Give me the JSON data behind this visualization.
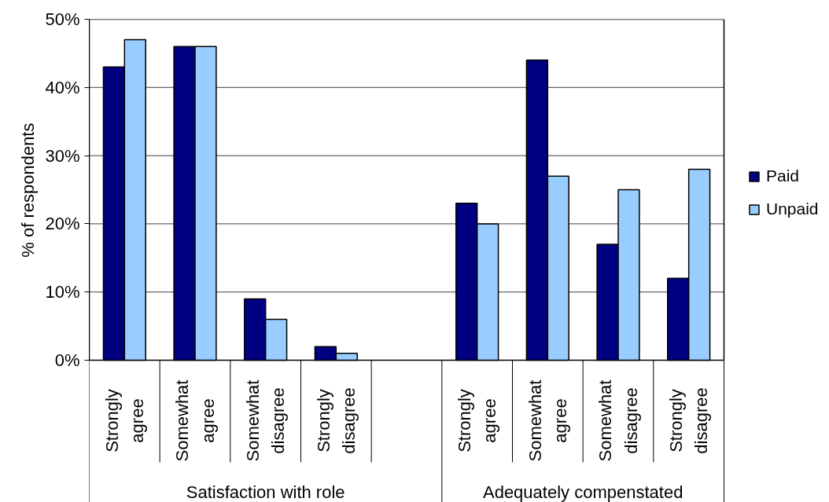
{
  "chart_data": {
    "type": "bar",
    "categories": [
      "Strongly agree",
      "Somewhat agree",
      "Somewhat disagree",
      "Strongly disagree",
      null,
      "Strongly agree",
      "Somewhat agree",
      "Somewhat disagree",
      "Strongly disagree"
    ],
    "series": [
      {
        "name": "Paid",
        "color": "#000080",
        "values": [
          43,
          46,
          9,
          2,
          null,
          23,
          44,
          17,
          12
        ]
      },
      {
        "name": "Unpaid",
        "color": "#99ccff",
        "values": [
          47,
          46,
          6,
          1,
          null,
          20,
          27,
          25,
          28
        ]
      }
    ],
    "ylabel": "% of respondents",
    "ylim": [
      0,
      50
    ],
    "yticks": [
      {
        "value": 0,
        "label": "0%"
      },
      {
        "value": 10,
        "label": "10%"
      },
      {
        "value": 20,
        "label": "20%"
      },
      {
        "value": 30,
        "label": "30%"
      },
      {
        "value": 40,
        "label": "40%"
      },
      {
        "value": 50,
        "label": "50%"
      }
    ],
    "grid": "y",
    "legend": "right",
    "annotations": [
      "Satisfaction with role",
      "Adequately compenstated"
    ]
  }
}
